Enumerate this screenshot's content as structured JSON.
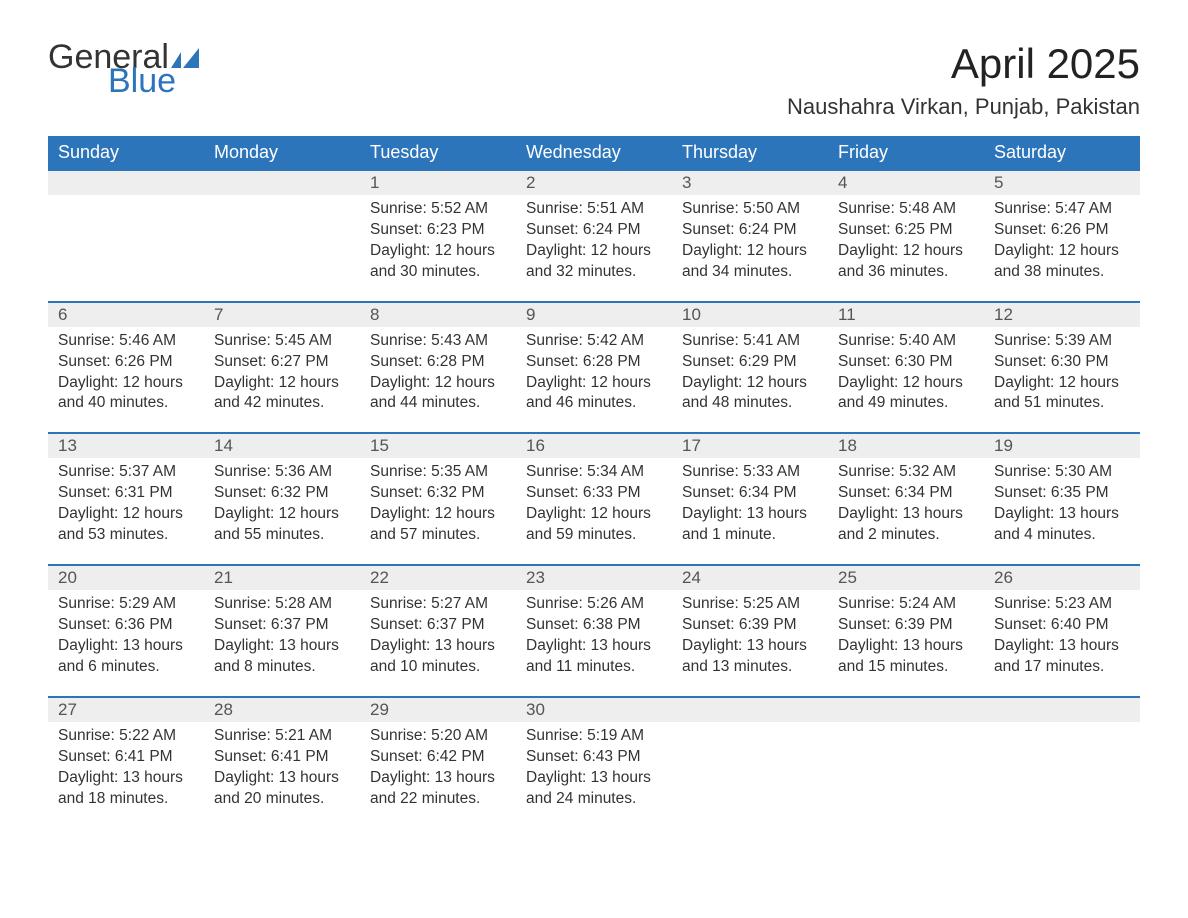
{
  "logo": {
    "general": "General",
    "blue": "Blue",
    "flag_color": "#2d75bb"
  },
  "title": "April 2025",
  "location": "Naushahra Virkan, Punjab, Pakistan",
  "styling": {
    "header_bg": "#2d75bb",
    "header_text": "#ffffff",
    "daynum_bg": "#eeeeee",
    "row_divider": "#2d75bb",
    "body_text": "#333333",
    "title_fontsize": 42,
    "location_fontsize": 22,
    "dayheader_fontsize": 18,
    "cell_fontsize": 15.5
  },
  "day_headers": [
    "Sunday",
    "Monday",
    "Tuesday",
    "Wednesday",
    "Thursday",
    "Friday",
    "Saturday"
  ],
  "weeks": [
    [
      null,
      null,
      {
        "n": "1",
        "sr": "5:52 AM",
        "ss": "6:23 PM",
        "dl": "12 hours and 30 minutes."
      },
      {
        "n": "2",
        "sr": "5:51 AM",
        "ss": "6:24 PM",
        "dl": "12 hours and 32 minutes."
      },
      {
        "n": "3",
        "sr": "5:50 AM",
        "ss": "6:24 PM",
        "dl": "12 hours and 34 minutes."
      },
      {
        "n": "4",
        "sr": "5:48 AM",
        "ss": "6:25 PM",
        "dl": "12 hours and 36 minutes."
      },
      {
        "n": "5",
        "sr": "5:47 AM",
        "ss": "6:26 PM",
        "dl": "12 hours and 38 minutes."
      }
    ],
    [
      {
        "n": "6",
        "sr": "5:46 AM",
        "ss": "6:26 PM",
        "dl": "12 hours and 40 minutes."
      },
      {
        "n": "7",
        "sr": "5:45 AM",
        "ss": "6:27 PM",
        "dl": "12 hours and 42 minutes."
      },
      {
        "n": "8",
        "sr": "5:43 AM",
        "ss": "6:28 PM",
        "dl": "12 hours and 44 minutes."
      },
      {
        "n": "9",
        "sr": "5:42 AM",
        "ss": "6:28 PM",
        "dl": "12 hours and 46 minutes."
      },
      {
        "n": "10",
        "sr": "5:41 AM",
        "ss": "6:29 PM",
        "dl": "12 hours and 48 minutes."
      },
      {
        "n": "11",
        "sr": "5:40 AM",
        "ss": "6:30 PM",
        "dl": "12 hours and 49 minutes."
      },
      {
        "n": "12",
        "sr": "5:39 AM",
        "ss": "6:30 PM",
        "dl": "12 hours and 51 minutes."
      }
    ],
    [
      {
        "n": "13",
        "sr": "5:37 AM",
        "ss": "6:31 PM",
        "dl": "12 hours and 53 minutes."
      },
      {
        "n": "14",
        "sr": "5:36 AM",
        "ss": "6:32 PM",
        "dl": "12 hours and 55 minutes."
      },
      {
        "n": "15",
        "sr": "5:35 AM",
        "ss": "6:32 PM",
        "dl": "12 hours and 57 minutes."
      },
      {
        "n": "16",
        "sr": "5:34 AM",
        "ss": "6:33 PM",
        "dl": "12 hours and 59 minutes."
      },
      {
        "n": "17",
        "sr": "5:33 AM",
        "ss": "6:34 PM",
        "dl": "13 hours and 1 minute."
      },
      {
        "n": "18",
        "sr": "5:32 AM",
        "ss": "6:34 PM",
        "dl": "13 hours and 2 minutes."
      },
      {
        "n": "19",
        "sr": "5:30 AM",
        "ss": "6:35 PM",
        "dl": "13 hours and 4 minutes."
      }
    ],
    [
      {
        "n": "20",
        "sr": "5:29 AM",
        "ss": "6:36 PM",
        "dl": "13 hours and 6 minutes."
      },
      {
        "n": "21",
        "sr": "5:28 AM",
        "ss": "6:37 PM",
        "dl": "13 hours and 8 minutes."
      },
      {
        "n": "22",
        "sr": "5:27 AM",
        "ss": "6:37 PM",
        "dl": "13 hours and 10 minutes."
      },
      {
        "n": "23",
        "sr": "5:26 AM",
        "ss": "6:38 PM",
        "dl": "13 hours and 11 minutes."
      },
      {
        "n": "24",
        "sr": "5:25 AM",
        "ss": "6:39 PM",
        "dl": "13 hours and 13 minutes."
      },
      {
        "n": "25",
        "sr": "5:24 AM",
        "ss": "6:39 PM",
        "dl": "13 hours and 15 minutes."
      },
      {
        "n": "26",
        "sr": "5:23 AM",
        "ss": "6:40 PM",
        "dl": "13 hours and 17 minutes."
      }
    ],
    [
      {
        "n": "27",
        "sr": "5:22 AM",
        "ss": "6:41 PM",
        "dl": "13 hours and 18 minutes."
      },
      {
        "n": "28",
        "sr": "5:21 AM",
        "ss": "6:41 PM",
        "dl": "13 hours and 20 minutes."
      },
      {
        "n": "29",
        "sr": "5:20 AM",
        "ss": "6:42 PM",
        "dl": "13 hours and 22 minutes."
      },
      {
        "n": "30",
        "sr": "5:19 AM",
        "ss": "6:43 PM",
        "dl": "13 hours and 24 minutes."
      },
      null,
      null,
      null
    ]
  ],
  "labels": {
    "sunrise": "Sunrise: ",
    "sunset": "Sunset: ",
    "daylight": "Daylight: "
  }
}
